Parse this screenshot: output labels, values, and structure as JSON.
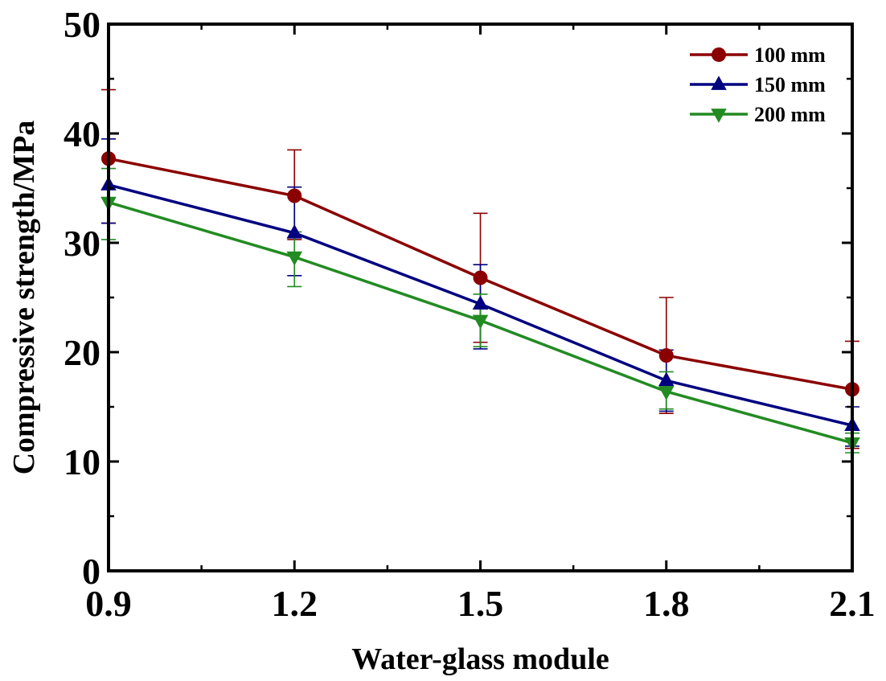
{
  "chart_data": {
    "type": "line",
    "title": "",
    "xlabel": "Water-glass module",
    "ylabel": "Compressive strength/MPa",
    "x": [
      0.9,
      1.2,
      1.5,
      1.8,
      2.1
    ],
    "x_tick_labels": [
      "0.9",
      "1.2",
      "1.5",
      "1.8",
      "2.1"
    ],
    "y_ticks": [
      0,
      10,
      20,
      30,
      40,
      50
    ],
    "y_tick_labels": [
      "0",
      "10",
      "20",
      "30",
      "40",
      "50"
    ],
    "xlim": [
      0.9,
      2.1
    ],
    "ylim": [
      0,
      50
    ],
    "grid": false,
    "legend_position": "top-right",
    "series": [
      {
        "name": "100 mm",
        "color": "#8b0000",
        "marker": "circle",
        "values": [
          37.7,
          34.3,
          26.8,
          19.7,
          16.6
        ],
        "error_upper": [
          44.0,
          38.5,
          32.7,
          25.0,
          21.0
        ],
        "error_lower": [
          31.8,
          30.3,
          20.9,
          14.4,
          11.2
        ]
      },
      {
        "name": "150 mm",
        "color": "#000080",
        "marker": "triangle-up",
        "values": [
          35.3,
          30.9,
          24.4,
          17.4,
          13.3
        ],
        "error_upper": [
          39.5,
          35.1,
          28.0,
          20.2,
          15.0
        ],
        "error_lower": [
          31.8,
          27.0,
          20.3,
          14.6,
          11.4
        ]
      },
      {
        "name": "200 mm",
        "color": "#228b22",
        "marker": "triangle-down",
        "values": [
          33.7,
          28.7,
          22.9,
          16.4,
          11.7
        ],
        "error_upper": [
          36.8,
          31.0,
          25.3,
          18.2,
          12.6
        ],
        "error_lower": [
          30.3,
          26.0,
          20.5,
          14.8,
          10.8
        ]
      }
    ]
  }
}
